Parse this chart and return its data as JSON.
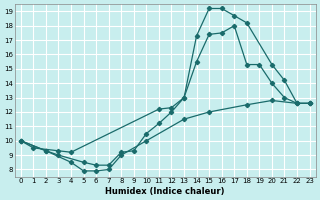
{
  "title": "",
  "xlabel": "Humidex (Indice chaleur)",
  "ylabel": "",
  "bg_color": "#c8eeee",
  "grid_color": "#ffffff",
  "line_color": "#1a6b6b",
  "marker_color": "#1a6b6b",
  "xlim": [
    -0.5,
    23.5
  ],
  "ylim": [
    7.5,
    19.5
  ],
  "xticks": [
    0,
    1,
    2,
    3,
    4,
    5,
    6,
    7,
    8,
    9,
    10,
    11,
    12,
    13,
    14,
    15,
    16,
    17,
    18,
    19,
    20,
    21,
    22,
    23
  ],
  "yticks": [
    8,
    9,
    10,
    11,
    12,
    13,
    14,
    15,
    16,
    17,
    18,
    19
  ],
  "lines": [
    {
      "x": [
        0,
        1,
        3,
        4,
        11,
        12,
        13,
        14,
        15,
        16,
        17,
        18,
        20,
        21,
        22,
        23
      ],
      "y": [
        10,
        9.5,
        9.3,
        9.2,
        12.2,
        12.3,
        13.0,
        17.3,
        19.2,
        19.2,
        18.7,
        18.2,
        15.3,
        14.2,
        12.6,
        12.6
      ]
    },
    {
      "x": [
        0,
        2,
        3,
        5,
        6,
        7,
        8,
        9,
        10,
        11,
        12,
        13,
        14,
        15,
        16,
        17,
        18,
        19,
        20,
        21,
        22,
        23
      ],
      "y": [
        10,
        9.3,
        9.0,
        8.5,
        8.3,
        8.3,
        9.2,
        9.3,
        10.5,
        11.2,
        12.0,
        13.0,
        15.5,
        17.4,
        17.5,
        18.0,
        15.3,
        15.3,
        14.0,
        13.0,
        12.6,
        12.6
      ]
    },
    {
      "x": [
        0,
        2,
        4,
        5,
        6,
        7,
        8,
        10,
        13,
        15,
        18,
        20,
        22,
        23
      ],
      "y": [
        10,
        9.3,
        8.5,
        7.9,
        7.9,
        8.0,
        9.0,
        10.0,
        11.5,
        12.0,
        12.5,
        12.8,
        12.6,
        12.6
      ]
    }
  ]
}
